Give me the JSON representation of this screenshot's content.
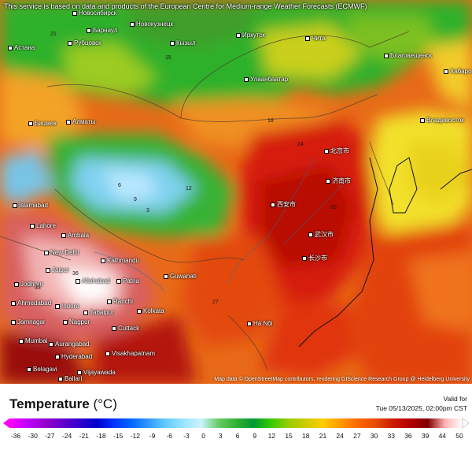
{
  "notice": "This service is based on data and products of the European Centre for Medium-range Weather Forecasts (ECMWF)",
  "attribution": "Map data © OpenStreetMap contributors, rendering GIScience Research Group @ Heidelberg University",
  "legend": {
    "title": "Temperature",
    "unit": "(°C)",
    "valid_label": "Valid for",
    "valid_time": "Tue 05/13/2025, 02:00pm CST",
    "ticks": [
      "-36",
      "-30",
      "-27",
      "-24",
      "-21",
      "-18",
      "-15",
      "-12",
      "-9",
      "-6",
      "-3",
      "0",
      "3",
      "6",
      "9",
      "12",
      "15",
      "18",
      "21",
      "24",
      "27",
      "30",
      "33",
      "36",
      "39",
      "44",
      "50"
    ],
    "colors": [
      "#ff00ff",
      "#c000ff",
      "#9900cc",
      "#6600cc",
      "#3300cc",
      "#0000cc",
      "#0033ff",
      "#0066ff",
      "#3399ff",
      "#66ccff",
      "#99e6ff",
      "#ccf2ff",
      "#66cc66",
      "#33b233",
      "#009933",
      "#33cc00",
      "#99cc00",
      "#cccc00",
      "#ffcc00",
      "#ff9900",
      "#ff6600",
      "#e64c00",
      "#cc1a00",
      "#b30000",
      "#800000",
      "#ffb3b3",
      "#ffffff"
    ]
  },
  "cities": [
    {
      "name": "Новосибирск"
    },
    {
      "name": "Новокузнецк"
    },
    {
      "name": "Барнаул"
    },
    {
      "name": "Астана"
    },
    {
      "name": "Рубцовск"
    },
    {
      "name": "Кызыл"
    },
    {
      "name": "Иркутск"
    },
    {
      "name": "Чита"
    },
    {
      "name": "Благовещенск"
    },
    {
      "name": "Хабаро"
    },
    {
      "name": "Улаанбаатар"
    },
    {
      "name": "Бишкек"
    },
    {
      "name": "Алматы"
    },
    {
      "name": "Владивосток"
    },
    {
      "name": "Islamabad"
    },
    {
      "name": "Lahore"
    },
    {
      "name": "Ambala"
    },
    {
      "name": "New Delhi"
    },
    {
      "name": "Jaipur"
    },
    {
      "name": "Jodhpur"
    },
    {
      "name": "Kathmandu"
    },
    {
      "name": "Patna"
    },
    {
      "name": "Guwahati"
    },
    {
      "name": "Allahabad"
    },
    {
      "name": "Ahmedabad"
    },
    {
      "name": "Indore"
    },
    {
      "name": "Ranchi"
    },
    {
      "name": "Kolkata"
    },
    {
      "name": "Jabalpur"
    },
    {
      "name": "Nagpur"
    },
    {
      "name": "Jamnagar"
    },
    {
      "name": "Cuttack"
    },
    {
      "name": "Mumbai"
    },
    {
      "name": "Aurangabad"
    },
    {
      "name": "Hyderabad"
    },
    {
      "name": "Visakhapatnam"
    },
    {
      "name": "Vijayawada"
    },
    {
      "name": "Belagavi"
    },
    {
      "name": "Ballari"
    },
    {
      "name": "Hà Nội"
    },
    {
      "name": "北京市"
    },
    {
      "name": "武汉市"
    },
    {
      "name": "长沙市"
    },
    {
      "name": "西安市"
    },
    {
      "name": "济南市"
    }
  ],
  "map_values": [
    "21",
    "15",
    "18",
    "12",
    "24",
    "9",
    "6",
    "3",
    "27",
    "30",
    "33",
    "36"
  ]
}
